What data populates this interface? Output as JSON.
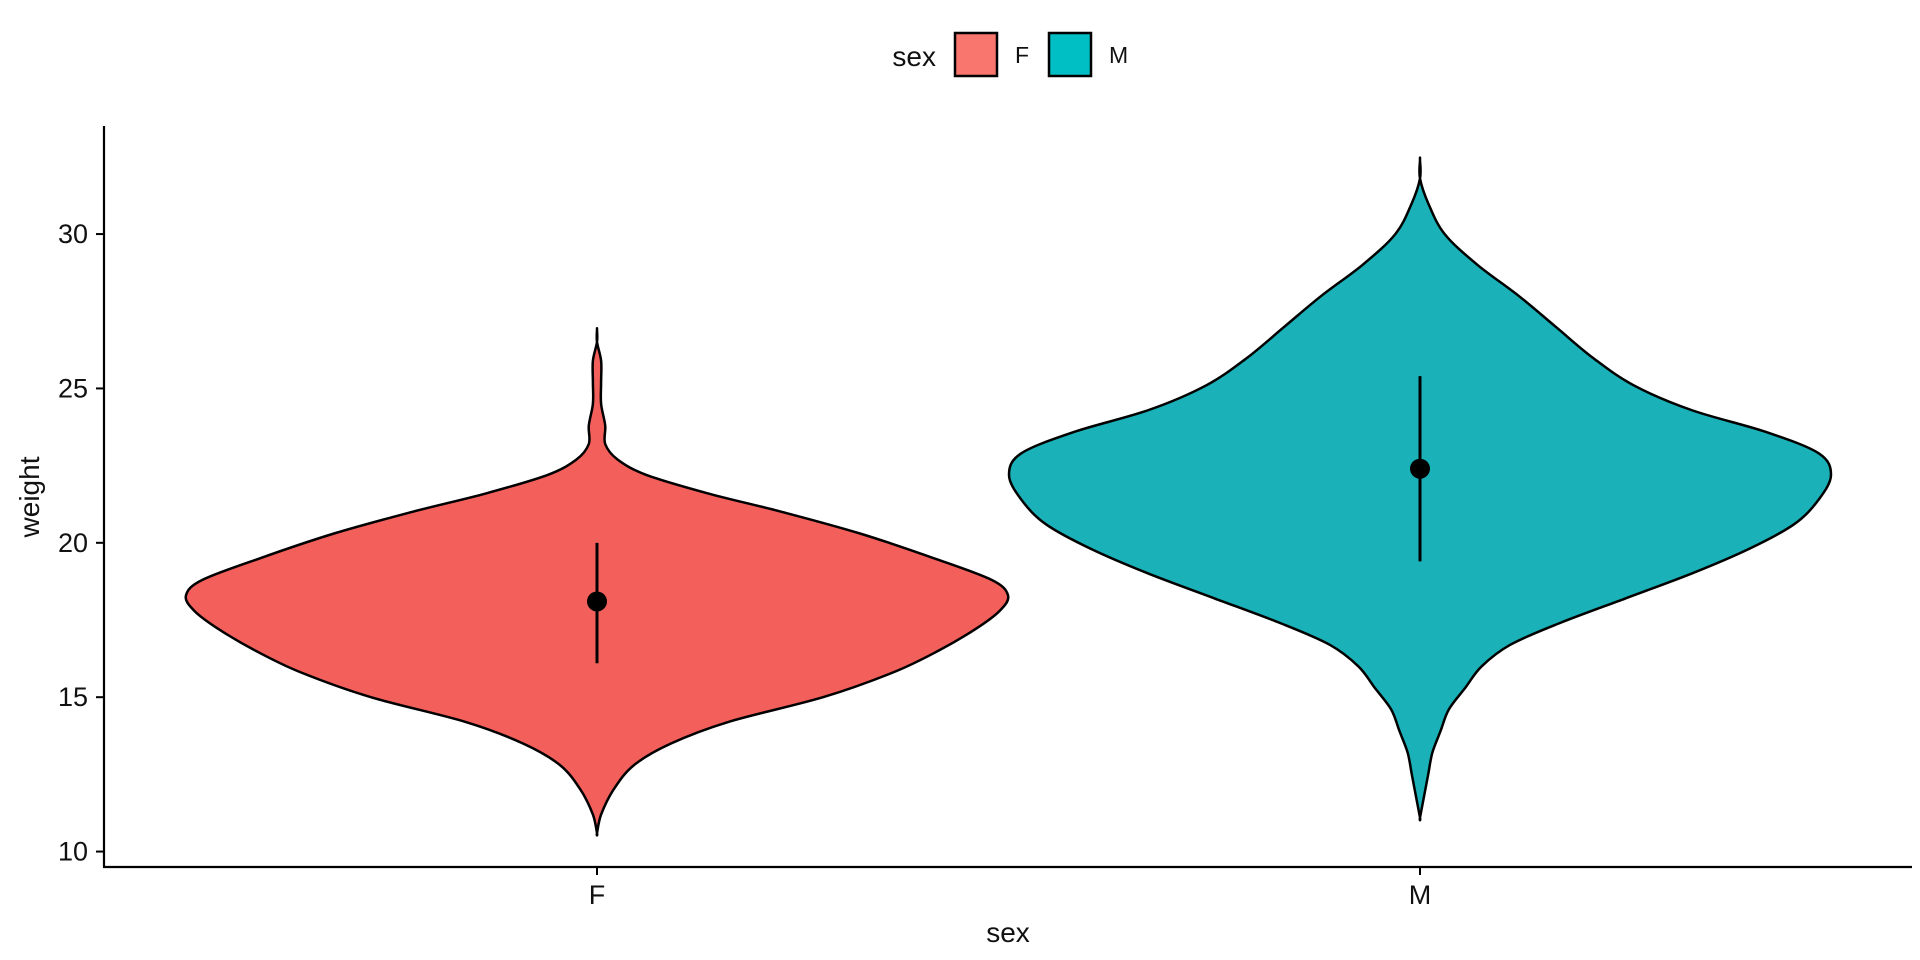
{
  "chart_data": {
    "type": "violin",
    "title": "",
    "xlabel": "sex",
    "ylabel": "weight",
    "categories": [
      "F",
      "M"
    ],
    "ylim": [
      9.5,
      33.5
    ],
    "yticks": [
      10,
      15,
      20,
      25,
      30
    ],
    "grid": false,
    "legend": {
      "title": "sex",
      "position": "top",
      "entries": [
        {
          "label": "F",
          "color": "#F8766D"
        },
        {
          "label": "M",
          "color": "#00BFC4"
        }
      ]
    },
    "series": [
      {
        "name": "F",
        "color": "#F3605B",
        "summary": {
          "mean": 18.1,
          "lower": 16.1,
          "upper": 20.0
        },
        "density": {
          "y": [
            10.6,
            11.2,
            12.0,
            12.8,
            13.5,
            14.2,
            15.0,
            15.8,
            16.5,
            17.2,
            17.8,
            18.3,
            18.8,
            19.5,
            20.3,
            21.0,
            21.6,
            22.2,
            22.7,
            23.2,
            23.8,
            24.5,
            25.2,
            25.9,
            26.5,
            26.9
          ],
          "width": [
            0.0,
            0.01,
            0.04,
            0.09,
            0.18,
            0.32,
            0.55,
            0.72,
            0.83,
            0.92,
            0.98,
            1.0,
            0.96,
            0.82,
            0.64,
            0.45,
            0.27,
            0.12,
            0.05,
            0.02,
            0.02,
            0.01,
            0.01,
            0.01,
            0.0,
            0.0
          ]
        }
      },
      {
        "name": "M",
        "color": "#1AB2B8",
        "summary": {
          "mean": 22.4,
          "lower": 19.4,
          "upper": 25.4
        },
        "density": {
          "y": [
            11.1,
            11.8,
            12.5,
            13.2,
            13.9,
            14.6,
            15.3,
            16.0,
            16.7,
            17.4,
            18.2,
            19.0,
            19.8,
            20.6,
            21.4,
            22.2,
            22.9,
            23.6,
            24.3,
            25.1,
            26.0,
            27.0,
            28.0,
            29.0,
            30.0,
            31.0,
            31.8,
            32.4
          ],
          "width": [
            0.0,
            0.01,
            0.02,
            0.03,
            0.05,
            0.07,
            0.11,
            0.15,
            0.22,
            0.34,
            0.5,
            0.66,
            0.8,
            0.91,
            0.97,
            1.0,
            0.97,
            0.84,
            0.66,
            0.52,
            0.42,
            0.33,
            0.24,
            0.14,
            0.06,
            0.02,
            0.0,
            0.0
          ]
        }
      }
    ]
  }
}
